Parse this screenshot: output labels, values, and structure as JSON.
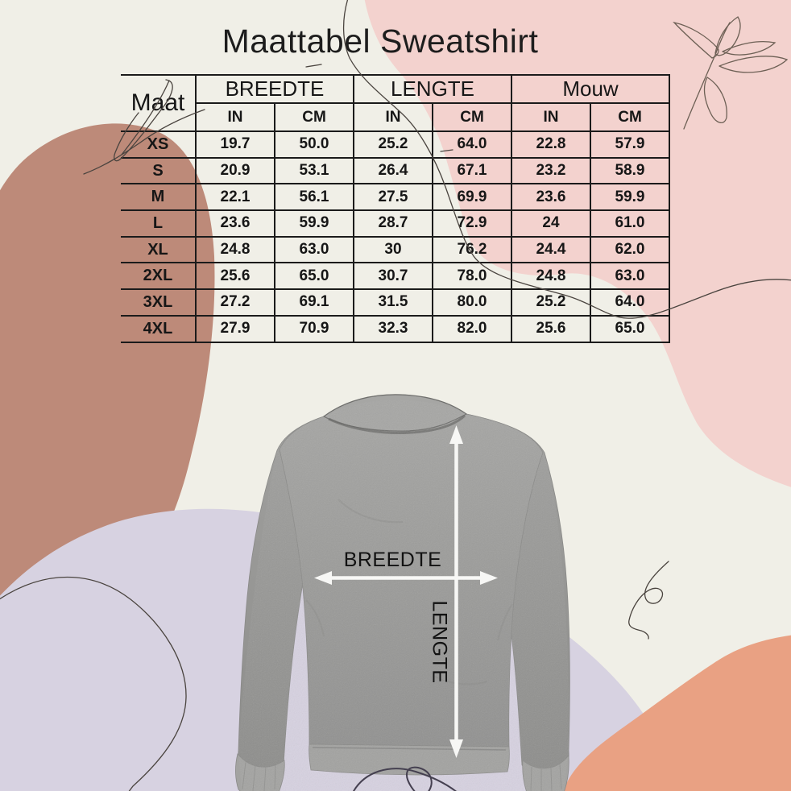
{
  "title": "Maattabel Sweatshirt",
  "table": {
    "size_column_label": "Maat",
    "groups": [
      {
        "label": "BREEDTE"
      },
      {
        "label": "LENGTE"
      },
      {
        "label": "Mouw"
      }
    ],
    "unit_headers": [
      "IN",
      "CM"
    ],
    "rows": [
      {
        "size": "XS",
        "values": [
          "19.7",
          "50.0",
          "25.2",
          "64.0",
          "22.8",
          "57.9"
        ]
      },
      {
        "size": "S",
        "values": [
          "20.9",
          "53.1",
          "26.4",
          "67.1",
          "23.2",
          "58.9"
        ]
      },
      {
        "size": "M",
        "values": [
          "22.1",
          "56.1",
          "27.5",
          "69.9",
          "23.6",
          "59.9"
        ]
      },
      {
        "size": "L",
        "values": [
          "23.6",
          "59.9",
          "28.7",
          "72.9",
          "24",
          "61.0"
        ]
      },
      {
        "size": "XL",
        "values": [
          "24.8",
          "63.0",
          "30",
          "76.2",
          "24.4",
          "62.0"
        ]
      },
      {
        "size": "2XL",
        "values": [
          "25.6",
          "65.0",
          "30.7",
          "78.0",
          "24.8",
          "63.0"
        ]
      },
      {
        "size": "3XL",
        "values": [
          "27.2",
          "69.1",
          "31.5",
          "80.0",
          "25.2",
          "64.0"
        ]
      },
      {
        "size": "4XL",
        "values": [
          "27.9",
          "70.9",
          "32.3",
          "82.0",
          "25.6",
          "65.0"
        ]
      }
    ]
  },
  "diagram": {
    "width_label": "BREEDTE",
    "length_label": "LENGTE"
  },
  "chart_data": {
    "type": "table",
    "title": "Maattabel Sweatshirt",
    "columns": [
      "Maat",
      "BREEDTE IN",
      "BREEDTE CM",
      "LENGTE IN",
      "LENGTE CM",
      "Mouw IN",
      "Mouw CM"
    ],
    "rows": [
      [
        "XS",
        19.7,
        50.0,
        25.2,
        64.0,
        22.8,
        57.9
      ],
      [
        "S",
        20.9,
        53.1,
        26.4,
        67.1,
        23.2,
        58.9
      ],
      [
        "M",
        22.1,
        56.1,
        27.5,
        69.9,
        23.6,
        59.9
      ],
      [
        "L",
        23.6,
        59.9,
        28.7,
        72.9,
        24.0,
        61.0
      ],
      [
        "XL",
        24.8,
        63.0,
        30.0,
        76.2,
        24.4,
        62.0
      ],
      [
        "2XL",
        25.6,
        65.0,
        30.7,
        78.0,
        24.8,
        63.0
      ],
      [
        "3XL",
        27.2,
        69.1,
        31.5,
        80.0,
        25.2,
        64.0
      ],
      [
        "4XL",
        27.9,
        70.9,
        32.3,
        82.0,
        25.6,
        65.0
      ]
    ],
    "annotations": [
      "BREEDTE",
      "LENGTE"
    ]
  },
  "colors": {
    "background": "#f0efe7",
    "blob_pink": "#f3d2ce",
    "blob_clay": "#bd8a79",
    "blob_lavender": "#d7d2e1",
    "blob_salmon": "#e9a183",
    "table_line": "#1b1b1b",
    "sweatshirt_gray": "#9b9b99",
    "arrow_white": "#f7f7f5",
    "line_art": "#4a443f"
  }
}
